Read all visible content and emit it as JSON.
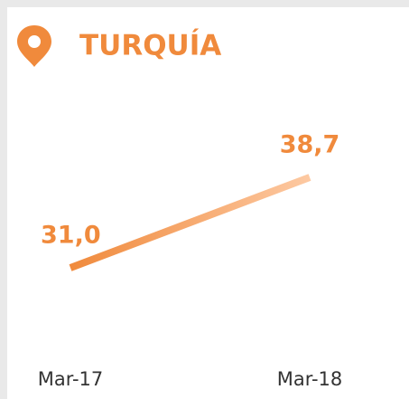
{
  "chart_data": {
    "type": "line",
    "title": "TURQUÍA",
    "categories": [
      "Mar-17",
      "Mar-18"
    ],
    "values": [
      31.0,
      38.7
    ],
    "value_labels": [
      "31,0",
      "38,7"
    ],
    "color": "#f08a3c"
  }
}
